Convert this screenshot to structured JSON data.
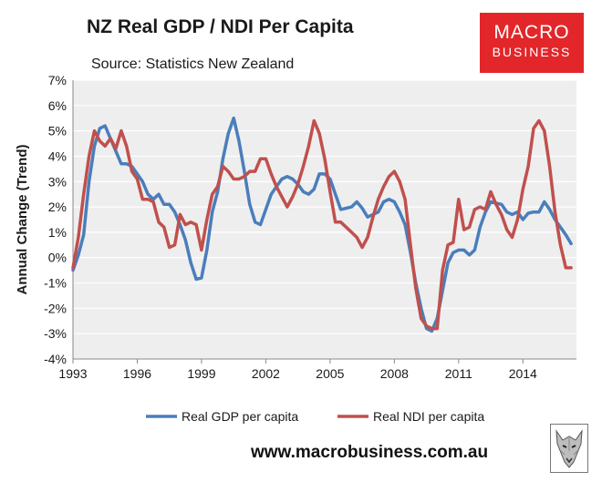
{
  "header": {
    "title": "NZ Real GDP / NDI Per Capita",
    "source": "Source: Statistics New Zealand"
  },
  "logo": {
    "line1": "MACRO",
    "line2": "BUSINESS",
    "color": "#e2262a"
  },
  "footer": {
    "website": "www.macrobusiness.com.au",
    "wolf_icon": "wolf-logo-icon"
  },
  "chart_data": {
    "type": "line",
    "ylabel": "Annual Change (Trend)",
    "xlabel": "",
    "ylim": [
      -4,
      7
    ],
    "xlim": [
      1993,
      2016.5
    ],
    "y_ticks": [
      "-4%",
      "-3%",
      "-2%",
      "-1%",
      "0%",
      "1%",
      "2%",
      "3%",
      "4%",
      "5%",
      "6%",
      "7%"
    ],
    "x_ticks": [
      "1993",
      "1996",
      "1999",
      "2002",
      "2005",
      "2008",
      "2011",
      "2014"
    ],
    "grid": "horizontal",
    "legend_position": "bottom",
    "plot_background": "#eeeeee",
    "series": [
      {
        "name": "Real GDP per capita",
        "color": "#4a7ebb",
        "x": [
          1993.0,
          1993.25,
          1993.5,
          1993.75,
          1994.0,
          1994.25,
          1994.5,
          1994.75,
          1995.0,
          1995.25,
          1995.5,
          1995.75,
          1996.0,
          1996.25,
          1996.5,
          1996.75,
          1997.0,
          1997.25,
          1997.5,
          1997.75,
          1998.0,
          1998.25,
          1998.5,
          1998.75,
          1999.0,
          1999.25,
          1999.5,
          1999.75,
          2000.0,
          2000.25,
          2000.5,
          2000.75,
          2001.0,
          2001.25,
          2001.5,
          2001.75,
          2002.0,
          2002.25,
          2002.5,
          2002.75,
          2003.0,
          2003.25,
          2003.5,
          2003.75,
          2004.0,
          2004.25,
          2004.5,
          2004.75,
          2005.0,
          2005.25,
          2005.5,
          2005.75,
          2006.0,
          2006.25,
          2006.5,
          2006.75,
          2007.0,
          2007.25,
          2007.5,
          2007.75,
          2008.0,
          2008.25,
          2008.5,
          2008.75,
          2009.0,
          2009.25,
          2009.5,
          2009.75,
          2010.0,
          2010.25,
          2010.5,
          2010.75,
          2011.0,
          2011.25,
          2011.5,
          2011.75,
          2012.0,
          2012.25,
          2012.5,
          2012.75,
          2013.0,
          2013.25,
          2013.5,
          2013.75,
          2014.0,
          2014.25,
          2014.5,
          2014.75,
          2015.0,
          2015.25,
          2015.5,
          2015.75,
          2016.0,
          2016.25
        ],
        "y": [
          -0.5,
          0.1,
          0.9,
          3.0,
          4.4,
          5.1,
          5.2,
          4.7,
          4.2,
          3.7,
          3.7,
          3.6,
          3.3,
          3.0,
          2.5,
          2.3,
          2.5,
          2.1,
          2.1,
          1.8,
          1.3,
          0.7,
          -0.2,
          -0.85,
          -0.8,
          0.3,
          1.8,
          2.6,
          3.9,
          4.9,
          5.5,
          4.6,
          3.4,
          2.1,
          1.4,
          1.3,
          1.9,
          2.5,
          2.8,
          3.1,
          3.2,
          3.1,
          2.9,
          2.6,
          2.5,
          2.7,
          3.3,
          3.3,
          3.1,
          2.5,
          1.9,
          1.95,
          2.0,
          2.2,
          1.95,
          1.6,
          1.7,
          1.8,
          2.2,
          2.3,
          2.2,
          1.8,
          1.3,
          0.2,
          -1.0,
          -2.0,
          -2.8,
          -2.9,
          -2.4,
          -1.3,
          -0.2,
          0.2,
          0.3,
          0.3,
          0.1,
          0.3,
          1.2,
          1.8,
          2.2,
          2.15,
          2.1,
          1.8,
          1.7,
          1.8,
          1.5,
          1.75,
          1.8,
          1.8,
          2.2,
          1.9,
          1.5,
          1.2,
          0.9,
          0.55
        ]
      },
      {
        "name": "Real NDI per capita",
        "color": "#c0504d",
        "x": [
          1993.0,
          1993.25,
          1993.5,
          1993.75,
          1994.0,
          1994.25,
          1994.5,
          1994.75,
          1995.0,
          1995.25,
          1995.5,
          1995.75,
          1996.0,
          1996.25,
          1996.5,
          1996.75,
          1997.0,
          1997.25,
          1997.5,
          1997.75,
          1998.0,
          1998.25,
          1998.5,
          1998.75,
          1999.0,
          1999.25,
          1999.5,
          1999.75,
          2000.0,
          2000.25,
          2000.5,
          2000.75,
          2001.0,
          2001.25,
          2001.5,
          2001.75,
          2002.0,
          2002.25,
          2002.5,
          2002.75,
          2003.0,
          2003.25,
          2003.5,
          2003.75,
          2004.0,
          2004.25,
          2004.5,
          2004.75,
          2005.0,
          2005.25,
          2005.5,
          2005.75,
          2006.0,
          2006.25,
          2006.5,
          2006.75,
          2007.0,
          2007.25,
          2007.5,
          2007.75,
          2008.0,
          2008.25,
          2008.5,
          2008.75,
          2009.0,
          2009.25,
          2009.5,
          2009.75,
          2010.0,
          2010.25,
          2010.5,
          2010.75,
          2011.0,
          2011.25,
          2011.5,
          2011.75,
          2012.0,
          2012.25,
          2012.5,
          2012.75,
          2013.0,
          2013.25,
          2013.5,
          2013.75,
          2014.0,
          2014.25,
          2014.5,
          2014.75,
          2015.0,
          2015.25,
          2015.5,
          2015.75,
          2016.0,
          2016.25
        ],
        "y": [
          -0.4,
          0.8,
          2.5,
          4.0,
          5.0,
          4.6,
          4.4,
          4.7,
          4.3,
          5.0,
          4.4,
          3.4,
          3.1,
          2.3,
          2.3,
          2.2,
          1.4,
          1.2,
          0.4,
          0.5,
          1.7,
          1.3,
          1.4,
          1.3,
          0.3,
          1.5,
          2.5,
          2.8,
          3.6,
          3.4,
          3.1,
          3.1,
          3.2,
          3.4,
          3.4,
          3.9,
          3.9,
          3.3,
          2.8,
          2.4,
          2.0,
          2.4,
          2.9,
          3.6,
          4.4,
          5.4,
          4.9,
          3.9,
          2.6,
          1.4,
          1.4,
          1.2,
          1.0,
          0.8,
          0.4,
          0.8,
          1.6,
          2.3,
          2.8,
          3.2,
          3.4,
          3.0,
          2.3,
          0.5,
          -1.2,
          -2.4,
          -2.7,
          -2.8,
          -2.8,
          -0.5,
          0.5,
          0.6,
          2.3,
          1.1,
          1.2,
          1.9,
          2.0,
          1.9,
          2.6,
          2.1,
          1.7,
          1.1,
          0.8,
          1.5,
          2.7,
          3.6,
          5.1,
          5.4,
          5.0,
          3.6,
          1.8,
          0.5,
          -0.4,
          -0.4
        ]
      }
    ]
  }
}
